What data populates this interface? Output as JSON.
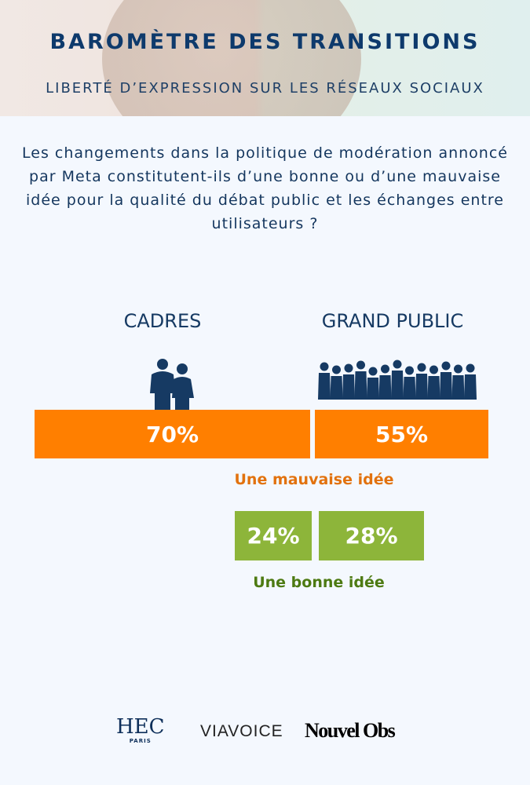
{
  "header": {
    "title": "BAROMÈTRE DES TRANSITIONS",
    "subtitle": "LIBERTÉ D’EXPRESSION SUR LES RÉSEAUX SOCIAUX"
  },
  "question": "Les changements dans la politique de modération annoncé par Meta constitutent-ils d’une bonne ou d’une mauvaise idée pour la qualité du débat public et les échanges entre utilisateurs ?",
  "groups": [
    {
      "label": "CADRES",
      "bad": "70%",
      "good": "24%"
    },
    {
      "label": "GRAND PUBLIC",
      "bad": "55%",
      "good": "28%"
    }
  ],
  "labels": {
    "bad": "Une mauvaise idée",
    "good": "Une bonne idée"
  },
  "colors": {
    "bad": "#ff7f00",
    "good": "#8db53a",
    "navy": "#0e3a6c"
  },
  "logos": {
    "hec": "HEC",
    "hec_sub": "PARIS",
    "viavoice": "VIAVOICE",
    "obs": "Nouvel Obs"
  }
}
